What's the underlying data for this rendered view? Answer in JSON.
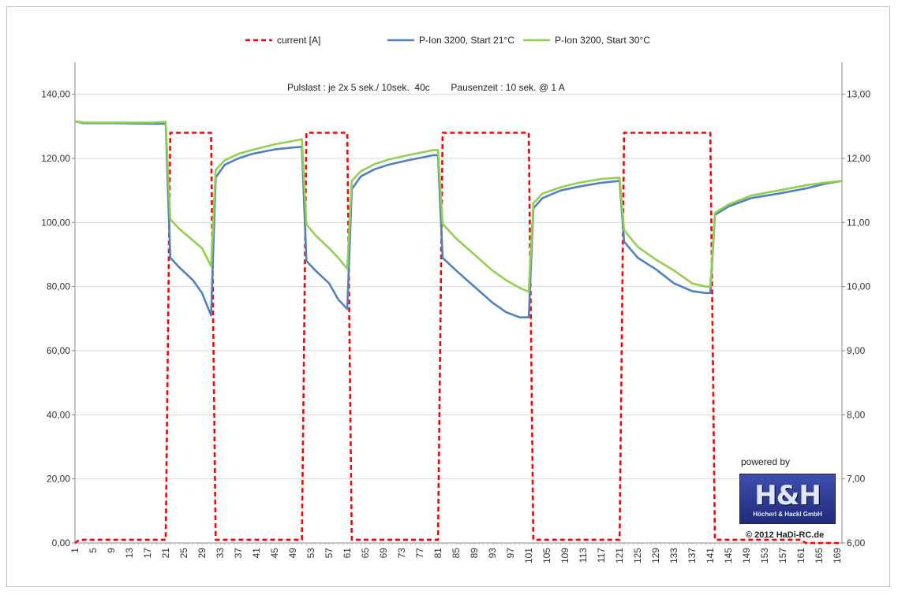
{
  "chart_data": {
    "type": "line",
    "subtitle": "Pulslast : je 2x 5 sek./ 10sek.  40c        Pausenzeit : 10 sek. @ 1 A",
    "x_range": [
      1,
      170
    ],
    "x_tick_labels": [
      "1",
      "5",
      "9",
      "13",
      "17",
      "21",
      "25",
      "29",
      "33",
      "37",
      "41",
      "45",
      "49",
      "53",
      "57",
      "61",
      "65",
      "69",
      "73",
      "77",
      "81",
      "85",
      "89",
      "93",
      "97",
      "101",
      "105",
      "109",
      "113",
      "117",
      "121",
      "125",
      "129",
      "133",
      "137",
      "141",
      "145",
      "149",
      "153",
      "157",
      "161",
      "165",
      "169"
    ],
    "y_left": {
      "range": [
        0,
        150
      ],
      "ticks": [
        "0,00",
        "20,00",
        "40,00",
        "60,00",
        "80,00",
        "100,00",
        "120,00",
        "140,00"
      ],
      "tick_values": [
        0,
        20,
        40,
        60,
        80,
        100,
        120,
        140
      ]
    },
    "y_right": {
      "range": [
        6,
        13.5
      ],
      "ticks": [
        "6,00",
        "7,00",
        "8,00",
        "9,00",
        "10,00",
        "11,00",
        "12,00",
        "13,00"
      ],
      "tick_values": [
        6,
        7,
        8,
        9,
        10,
        11,
        12,
        13
      ]
    },
    "grid": true,
    "legend_position": "top",
    "series": [
      {
        "name": "current [A]",
        "axis": "left",
        "color": "#ff0000",
        "style": "dashed",
        "points": [
          [
            1,
            0
          ],
          [
            2,
            1
          ],
          [
            21,
            1
          ],
          [
            22,
            128
          ],
          [
            31,
            128
          ],
          [
            32,
            1
          ],
          [
            51,
            1
          ],
          [
            52,
            128
          ],
          [
            61,
            128
          ],
          [
            62,
            1
          ],
          [
            81,
            1
          ],
          [
            82,
            128
          ],
          [
            101,
            128
          ],
          [
            102,
            1
          ],
          [
            121,
            1
          ],
          [
            122,
            128
          ],
          [
            141,
            128
          ],
          [
            142,
            1
          ],
          [
            161,
            1
          ],
          [
            162,
            0
          ],
          [
            170,
            0
          ]
        ]
      },
      {
        "name": "P-Ion 3200, Start 21°C",
        "axis": "right",
        "color": "#4f81bd",
        "style": "solid",
        "points": [
          [
            1,
            12.58
          ],
          [
            3,
            12.55
          ],
          [
            10,
            12.55
          ],
          [
            18,
            12.54
          ],
          [
            21,
            12.54
          ],
          [
            22,
            10.45
          ],
          [
            24,
            10.3
          ],
          [
            27,
            10.1
          ],
          [
            29,
            9.9
          ],
          [
            31,
            9.55
          ],
          [
            32,
            11.7
          ],
          [
            34,
            11.9
          ],
          [
            37,
            12.0
          ],
          [
            40,
            12.07
          ],
          [
            45,
            12.14
          ],
          [
            49,
            12.17
          ],
          [
            51,
            12.18
          ],
          [
            52,
            10.4
          ],
          [
            54,
            10.25
          ],
          [
            57,
            10.05
          ],
          [
            59,
            9.8
          ],
          [
            61,
            9.65
          ],
          [
            62,
            11.52
          ],
          [
            64,
            11.72
          ],
          [
            67,
            11.83
          ],
          [
            70,
            11.9
          ],
          [
            75,
            11.98
          ],
          [
            80,
            12.05
          ],
          [
            81,
            12.05
          ],
          [
            82,
            10.45
          ],
          [
            85,
            10.25
          ],
          [
            89,
            10.0
          ],
          [
            93,
            9.75
          ],
          [
            96,
            9.6
          ],
          [
            99,
            9.52
          ],
          [
            101,
            9.52
          ],
          [
            102,
            11.22
          ],
          [
            104,
            11.38
          ],
          [
            108,
            11.5
          ],
          [
            112,
            11.56
          ],
          [
            117,
            11.62
          ],
          [
            121,
            11.65
          ],
          [
            122,
            10.7
          ],
          [
            125,
            10.45
          ],
          [
            129,
            10.27
          ],
          [
            133,
            10.05
          ],
          [
            137,
            9.93
          ],
          [
            140,
            9.9
          ],
          [
            141,
            9.9
          ],
          [
            142,
            11.12
          ],
          [
            145,
            11.25
          ],
          [
            150,
            11.38
          ],
          [
            156,
            11.45
          ],
          [
            162,
            11.53
          ],
          [
            166,
            11.6
          ],
          [
            170,
            11.65
          ]
        ]
      },
      {
        "name": "P-Ion 3200, Start 30°C",
        "axis": "right",
        "color": "#92d050",
        "style": "solid",
        "points": [
          [
            1,
            12.58
          ],
          [
            3,
            12.56
          ],
          [
            10,
            12.56
          ],
          [
            18,
            12.56
          ],
          [
            21,
            12.57
          ],
          [
            22,
            11.05
          ],
          [
            24,
            10.9
          ],
          [
            27,
            10.72
          ],
          [
            29,
            10.6
          ],
          [
            31,
            10.32
          ],
          [
            32,
            11.82
          ],
          [
            34,
            11.97
          ],
          [
            37,
            12.07
          ],
          [
            40,
            12.13
          ],
          [
            45,
            12.22
          ],
          [
            49,
            12.27
          ],
          [
            51,
            12.3
          ],
          [
            52,
            10.97
          ],
          [
            54,
            10.8
          ],
          [
            57,
            10.6
          ],
          [
            59,
            10.45
          ],
          [
            61,
            10.28
          ],
          [
            62,
            11.65
          ],
          [
            64,
            11.8
          ],
          [
            67,
            11.91
          ],
          [
            70,
            11.98
          ],
          [
            75,
            12.06
          ],
          [
            80,
            12.13
          ],
          [
            81,
            12.13
          ],
          [
            82,
            10.98
          ],
          [
            85,
            10.75
          ],
          [
            89,
            10.5
          ],
          [
            93,
            10.25
          ],
          [
            96,
            10.1
          ],
          [
            99,
            9.98
          ],
          [
            101,
            9.92
          ],
          [
            102,
            11.3
          ],
          [
            104,
            11.45
          ],
          [
            108,
            11.55
          ],
          [
            112,
            11.62
          ],
          [
            117,
            11.68
          ],
          [
            121,
            11.7
          ],
          [
            122,
            10.88
          ],
          [
            125,
            10.62
          ],
          [
            129,
            10.42
          ],
          [
            133,
            10.25
          ],
          [
            137,
            10.05
          ],
          [
            140,
            10.0
          ],
          [
            141,
            10.0
          ],
          [
            142,
            11.15
          ],
          [
            145,
            11.28
          ],
          [
            150,
            11.42
          ],
          [
            156,
            11.5
          ],
          [
            162,
            11.58
          ],
          [
            166,
            11.62
          ],
          [
            170,
            11.65
          ]
        ]
      }
    ]
  },
  "logo": {
    "powered_by": "powered by",
    "mark": "H&H",
    "company": "Höcherl & Hackl GmbH",
    "copyright": "© 2012 HaDi-RC.de"
  }
}
